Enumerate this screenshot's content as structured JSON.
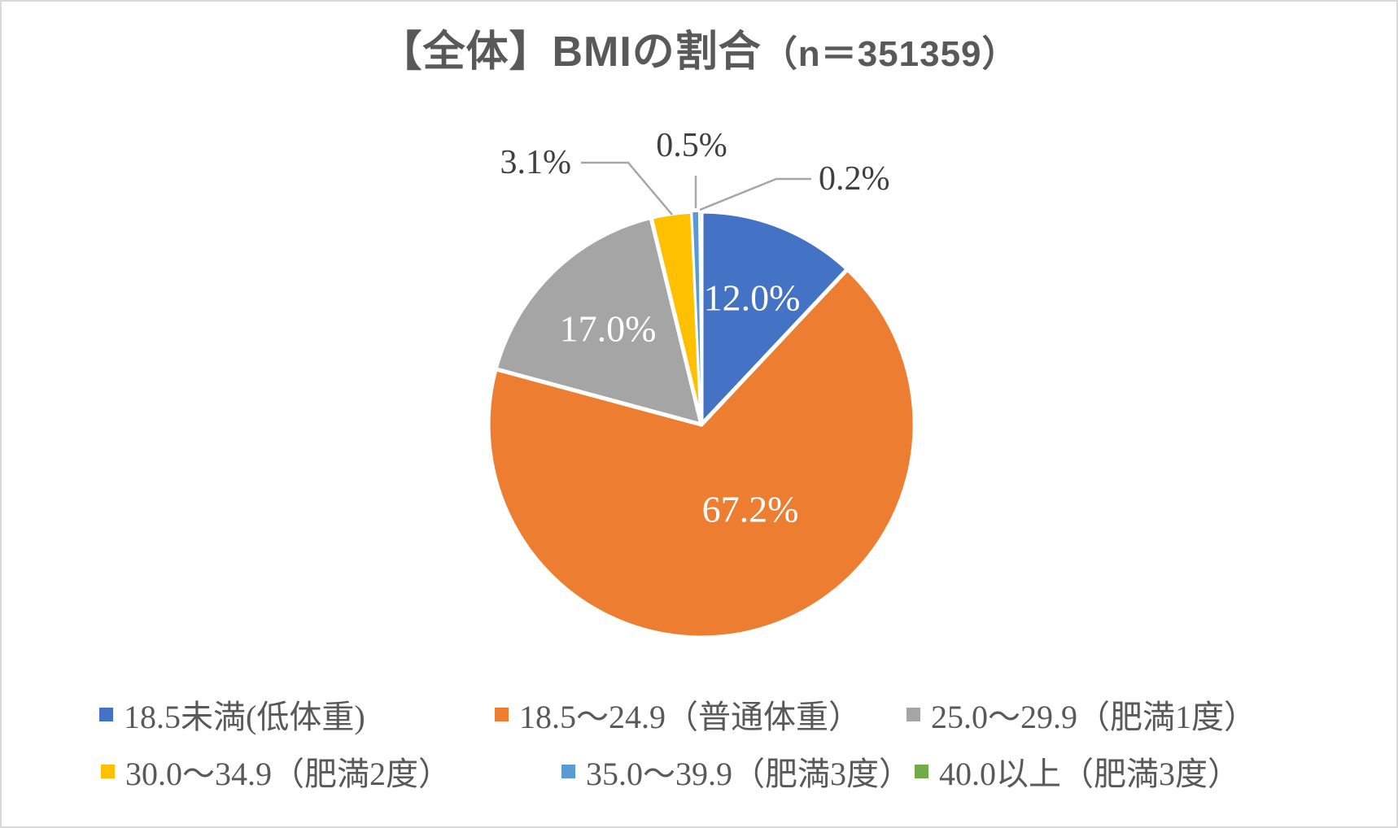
{
  "header": {
    "title_main": "【全体】BMIの割合",
    "title_suffix": "（n＝351359）"
  },
  "chart_data": {
    "type": "pie",
    "title": "【全体】BMIの割合（n＝351359）",
    "start_angle_deg": 0,
    "direction": "clockwise",
    "legend_position": "bottom",
    "legend_rows": 2,
    "slices": [
      {
        "label": "18.5未満(低体重)",
        "value": 12.0,
        "data_label": "12.0%",
        "color": "#4472C4",
        "label_position": "inside"
      },
      {
        "label": "18.5～24.9（普通体重）",
        "value": 67.2,
        "data_label": "67.2%",
        "color": "#ED7D31",
        "label_position": "inside"
      },
      {
        "label": "25.0～29.9（肥満1度）",
        "value": 17.0,
        "data_label": "17.0%",
        "color": "#A5A5A5",
        "label_position": "inside"
      },
      {
        "label": "30.0～34.9（肥満2度）",
        "value": 3.1,
        "data_label": "3.1%",
        "color": "#FFC000",
        "label_position": "outside"
      },
      {
        "label": "35.0～39.9（肥満3度）",
        "value": 0.5,
        "data_label": "0.5%",
        "color": "#5B9BD5",
        "label_position": "outside"
      },
      {
        "label": "40.0以上（肥満3度）",
        "value": 0.2,
        "data_label": "0.2%",
        "color": "#70AD47",
        "label_position": "outside"
      }
    ],
    "style": {
      "title_color": "#595959",
      "legend_text_color": "#595959",
      "outside_label_color": "#404040",
      "inside_label_color": "#FFFFFF",
      "leader_line_color": "#A6A6A6",
      "slice_border_color": "#FFFFFF",
      "frame_border_color": "#D9D9D9"
    }
  }
}
